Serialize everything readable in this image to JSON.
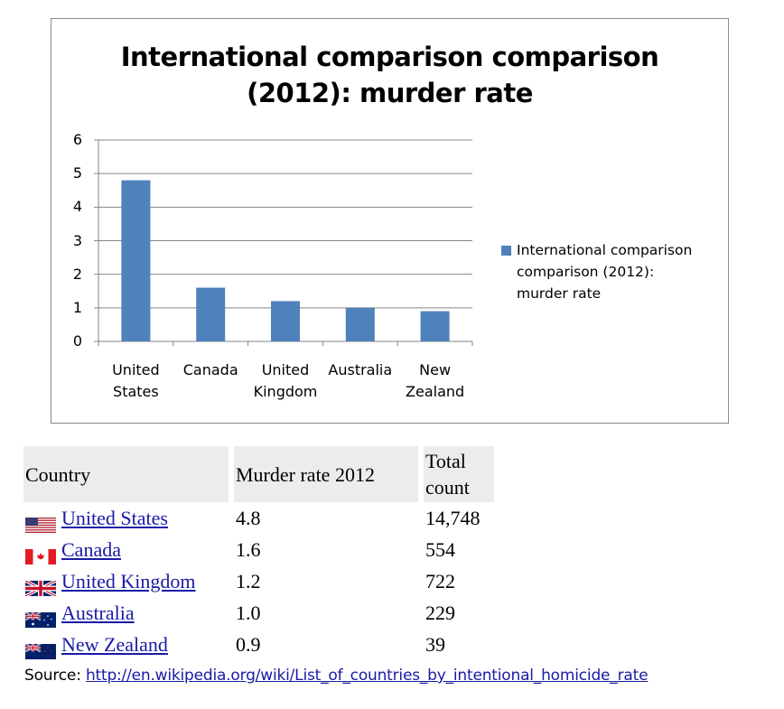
{
  "chart_data": {
    "type": "bar",
    "title": "International comparison comparison (2012): murder rate",
    "title_lines": [
      "International comparison comparison",
      "(2012): murder rate"
    ],
    "categories": [
      "United States",
      "Canada",
      "United Kingdom",
      "Australia",
      "New Zealand"
    ],
    "category_labels": [
      "United\nStates",
      "Canada",
      "United\nKingdom",
      "Australia",
      "New\nZealand"
    ],
    "series": [
      {
        "name": "International comparison comparison (2012): murder rate",
        "values": [
          4.8,
          1.6,
          1.2,
          1.0,
          0.9
        ],
        "color": "#4f81bd"
      }
    ],
    "xlabel": "",
    "ylabel": "",
    "ylim": [
      0,
      6
    ],
    "yticks": [
      "0",
      "1",
      "2",
      "3",
      "4",
      "5",
      "6"
    ],
    "grid": true,
    "legend_position": "right",
    "legend_label": "International comparison\ncomparison (2012):\nmurder rate"
  },
  "table": {
    "headers": [
      "Country",
      "Murder rate 2012",
      "Total\ncount"
    ],
    "rows": [
      {
        "flag": "us-flag-icon",
        "country": "United States",
        "rate": "4.8",
        "count": "14,748"
      },
      {
        "flag": "canada-flag-icon",
        "country": "Canada",
        "rate": "1.6",
        "count": "554"
      },
      {
        "flag": "uk-flag-icon",
        "country": "United Kingdom",
        "rate": "1.2",
        "count": "722"
      },
      {
        "flag": "australia-flag-icon",
        "country": "Australia",
        "rate": "1.0",
        "count": "229"
      },
      {
        "flag": "new-zealand-flag-icon",
        "country": "New Zealand",
        "rate": "0.9",
        "count": "39"
      }
    ]
  },
  "source": {
    "label": "Source:",
    "link": "http://en.wikipedia.org/wiki/List_of_countries_by_intentional_homicide_rate"
  },
  "colors": {
    "bar": "#4f81bd",
    "gridline": "#868686",
    "link": "#1a1aa6",
    "header_bg": "#ececec"
  }
}
